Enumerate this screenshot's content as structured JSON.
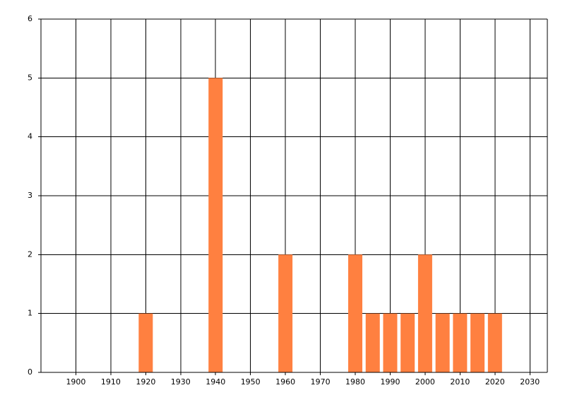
{
  "chart_data": {
    "type": "bar",
    "x": [
      1920,
      1940,
      1960,
      1980,
      1985,
      1990,
      1995,
      2000,
      2005,
      2010,
      2015,
      2020
    ],
    "values": [
      1,
      5,
      2,
      2,
      1,
      1,
      1,
      2,
      1,
      1,
      1,
      1
    ],
    "color": "#ff8040",
    "xlim": [
      1890,
      2035
    ],
    "xticks": [
      1900,
      1910,
      1920,
      1930,
      1940,
      1950,
      1960,
      1970,
      1980,
      1990,
      2000,
      2010,
      2020,
      2030
    ],
    "ylim": [
      0,
      6
    ],
    "yticks": [
      0,
      1,
      2,
      3,
      4,
      5,
      6
    ],
    "grid": true
  }
}
